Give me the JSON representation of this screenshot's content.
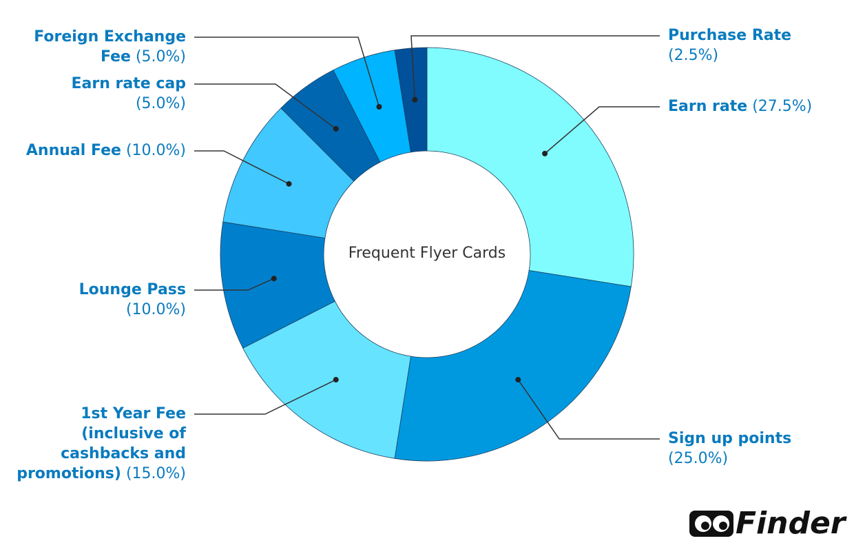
{
  "chart_data": {
    "type": "donut",
    "title": "Frequent Flyer Cards",
    "categories": [
      "Earn rate",
      "Sign up points",
      "1st Year Fee (inclusive of cashbacks and promotions)",
      "Lounge Pass",
      "Annual Fee",
      "Earn rate cap",
      "Foreign Exchange Fee",
      "Purchase Rate"
    ],
    "values": [
      27.5,
      25.0,
      15.0,
      10.0,
      10.0,
      5.0,
      5.0,
      2.5
    ],
    "value_labels": [
      "(27.5%)",
      "(25.0%)",
      "(15.0%)",
      "(10.0%)",
      "(10.0%)",
      "(5.0%)",
      "(5.0%)",
      "(2.5%)"
    ],
    "colors": [
      "#80fcff",
      "#0099e0",
      "#66e3ff",
      "#0080cc",
      "#40c8ff",
      "#0066b0",
      "#00b4ff",
      "#00509a"
    ]
  },
  "logo": "Finder"
}
